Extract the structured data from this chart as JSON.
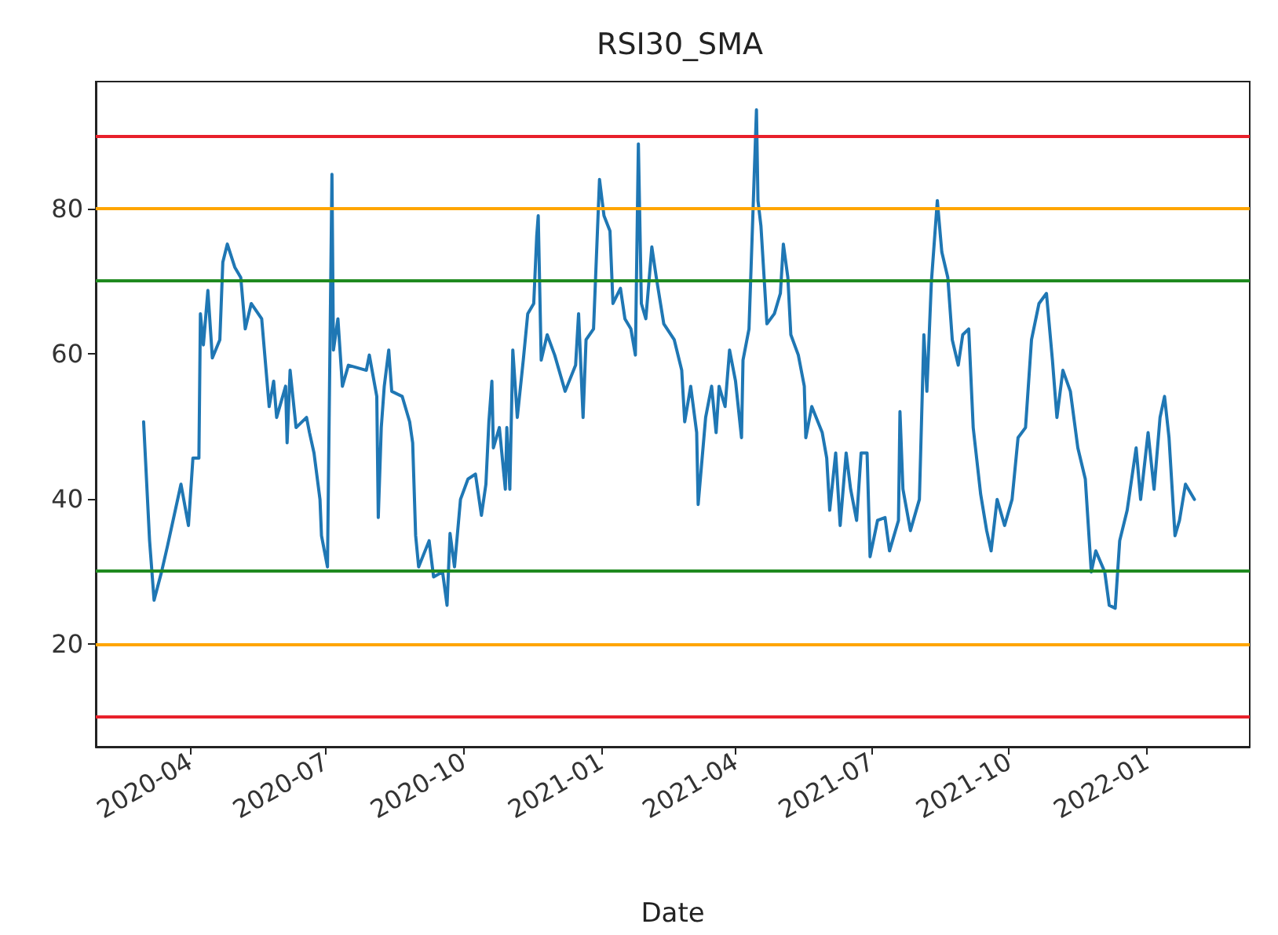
{
  "chart_data": {
    "type": "line",
    "title": "RSI30_SMA",
    "xlabel": "Date",
    "xlim": [
      "2020-01-29",
      "2022-03-11"
    ],
    "xticks": [
      {
        "value": "2020-04-01",
        "label": "2020-04"
      },
      {
        "value": "2020-07-01",
        "label": "2020-07"
      },
      {
        "value": "2020-10-01",
        "label": "2020-10"
      },
      {
        "value": "2021-01-01",
        "label": "2021-01"
      },
      {
        "value": "2021-04-01",
        "label": "2021-04"
      },
      {
        "value": "2021-07-01",
        "label": "2021-07"
      },
      {
        "value": "2021-10-01",
        "label": "2021-10"
      },
      {
        "value": "2022-01-01",
        "label": "2022-01"
      }
    ],
    "ylim": [
      5.8,
      97.5
    ],
    "yticks": [
      20,
      40,
      60,
      80
    ],
    "grid": false,
    "marker": "none",
    "line_style": "solid",
    "ref_lines": [
      {
        "axis": "y",
        "value": 90,
        "color": "#e8202a"
      },
      {
        "axis": "y",
        "value": 80,
        "color": "#ffa500"
      },
      {
        "axis": "y",
        "value": 70,
        "color": "#1f8a1f"
      },
      {
        "axis": "y",
        "value": 30,
        "color": "#1f8a1f"
      },
      {
        "axis": "y",
        "value": 20,
        "color": "#ffa500"
      },
      {
        "axis": "y",
        "value": 10,
        "color": "#e8202a"
      }
    ],
    "series": [
      {
        "color": "#1f77b4",
        "x": [
          "2020-03-01",
          "2020-03-05",
          "2020-03-08",
          "2020-03-13",
          "2020-03-17",
          "2020-03-26",
          "2020-03-31",
          "2020-04-03",
          "2020-04-07",
          "2020-04-08",
          "2020-04-10",
          "2020-04-13",
          "2020-04-16",
          "2020-04-21",
          "2020-04-23",
          "2020-04-26",
          "2020-05-01",
          "2020-05-05",
          "2020-05-08",
          "2020-05-12",
          "2020-05-19",
          "2020-05-24",
          "2020-05-27",
          "2020-05-29",
          "2020-06-04",
          "2020-06-05",
          "2020-06-07",
          "2020-06-11",
          "2020-06-18",
          "2020-06-20",
          "2020-06-23",
          "2020-06-27",
          "2020-06-28",
          "2020-07-02",
          "2020-07-05",
          "2020-07-06",
          "2020-07-09",
          "2020-07-12",
          "2020-07-16",
          "2020-07-28",
          "2020-07-30",
          "2020-08-04",
          "2020-08-05",
          "2020-08-07",
          "2020-08-09",
          "2020-08-12",
          "2020-08-14",
          "2020-08-21",
          "2020-08-26",
          "2020-08-28",
          "2020-08-30",
          "2020-09-01",
          "2020-09-08",
          "2020-09-11",
          "2020-09-17",
          "2020-09-20",
          "2020-09-22",
          "2020-09-25",
          "2020-09-29",
          "2020-10-04",
          "2020-10-09",
          "2020-10-13",
          "2020-10-16",
          "2020-10-18",
          "2020-10-20",
          "2020-10-21",
          "2020-10-25",
          "2020-10-29",
          "2020-10-30",
          "2020-11-01",
          "2020-11-03",
          "2020-11-06",
          "2020-11-10",
          "2020-11-13",
          "2020-11-17",
          "2020-11-19",
          "2020-11-20",
          "2020-11-22",
          "2020-11-26",
          "2020-12-01",
          "2020-12-08",
          "2020-12-15",
          "2020-12-17",
          "2020-12-20",
          "2020-12-22",
          "2020-12-27",
          "2020-12-31",
          "2021-01-03",
          "2021-01-07",
          "2021-01-09",
          "2021-01-14",
          "2021-01-17",
          "2021-01-21",
          "2021-01-24",
          "2021-01-26",
          "2021-01-28",
          "2021-01-31",
          "2021-02-04",
          "2021-02-07",
          "2021-02-12",
          "2021-02-19",
          "2021-02-24",
          "2021-02-26",
          "2021-03-02",
          "2021-03-06",
          "2021-03-07",
          "2021-03-12",
          "2021-03-16",
          "2021-03-19",
          "2021-03-21",
          "2021-03-25",
          "2021-03-28",
          "2021-04-01",
          "2021-04-05",
          "2021-04-06",
          "2021-04-10",
          "2021-04-15",
          "2021-04-16",
          "2021-04-18",
          "2021-04-22",
          "2021-04-27",
          "2021-05-01",
          "2021-05-03",
          "2021-05-06",
          "2021-05-08",
          "2021-05-13",
          "2021-05-17",
          "2021-05-18",
          "2021-05-22",
          "2021-05-29",
          "2021-06-01",
          "2021-06-03",
          "2021-06-07",
          "2021-06-10",
          "2021-06-14",
          "2021-06-17",
          "2021-06-21",
          "2021-06-24",
          "2021-06-28",
          "2021-06-30",
          "2021-07-05",
          "2021-07-10",
          "2021-07-13",
          "2021-07-19",
          "2021-07-20",
          "2021-07-22",
          "2021-07-27",
          "2021-08-02",
          "2021-08-05",
          "2021-08-07",
          "2021-08-10",
          "2021-08-14",
          "2021-08-17",
          "2021-08-21",
          "2021-08-24",
          "2021-08-28",
          "2021-08-31",
          "2021-09-04",
          "2021-09-07",
          "2021-09-12",
          "2021-09-16",
          "2021-09-19",
          "2021-09-23",
          "2021-09-28",
          "2021-10-03",
          "2021-10-07",
          "2021-10-12",
          "2021-10-16",
          "2021-10-21",
          "2021-10-26",
          "2021-10-30",
          "2021-11-02",
          "2021-11-06",
          "2021-11-11",
          "2021-11-16",
          "2021-11-21",
          "2021-11-25",
          "2021-11-28",
          "2021-12-04",
          "2021-12-07",
          "2021-12-11",
          "2021-12-14",
          "2021-12-19",
          "2021-12-25",
          "2021-12-28",
          "2022-01-02",
          "2022-01-06",
          "2022-01-10",
          "2022-01-13",
          "2022-01-16",
          "2022-01-20",
          "2022-01-23",
          "2022-01-27",
          "2022-02-02"
        ],
        "values": [
          50.6,
          34.2,
          26.0,
          29.9,
          33.5,
          42.0,
          36.3,
          45.6,
          45.6,
          65.5,
          61.2,
          68.7,
          59.4,
          61.9,
          72.6,
          75.1,
          71.9,
          70.5,
          63.4,
          66.9,
          64.8,
          52.7,
          56.2,
          51.2,
          55.5,
          47.7,
          57.7,
          49.8,
          51.2,
          49.1,
          46.3,
          39.9,
          34.9,
          30.6,
          84.7,
          60.5,
          64.8,
          55.5,
          58.4,
          57.7,
          59.8,
          54.1,
          37.4,
          49.8,
          55.5,
          60.5,
          54.8,
          54.1,
          50.6,
          47.7,
          34.9,
          30.6,
          34.2,
          29.2,
          29.9,
          25.3,
          35.2,
          30.6,
          39.9,
          42.7,
          43.4,
          37.7,
          42.0,
          50.6,
          56.2,
          47.0,
          49.8,
          41.3,
          49.8,
          41.3,
          60.5,
          51.2,
          59.1,
          65.5,
          66.9,
          76.2,
          79.0,
          59.1,
          62.6,
          59.8,
          54.8,
          58.4,
          65.5,
          51.2,
          61.9,
          63.4,
          84.0,
          79.0,
          76.9,
          66.9,
          69.0,
          64.8,
          63.4,
          59.8,
          88.9,
          66.9,
          64.8,
          74.7,
          70.5,
          64.1,
          61.9,
          57.7,
          50.6,
          55.5,
          49.1,
          39.2,
          51.2,
          55.5,
          49.1,
          55.5,
          52.7,
          60.5,
          56.2,
          48.4,
          59.1,
          63.4,
          93.6,
          81.1,
          77.6,
          64.1,
          65.5,
          68.3,
          75.1,
          70.5,
          62.6,
          59.8,
          55.5,
          48.4,
          52.7,
          49.1,
          45.6,
          38.4,
          46.3,
          36.3,
          46.3,
          41.3,
          37.0,
          46.3,
          46.3,
          32.0,
          37.0,
          37.4,
          32.8,
          37.0,
          52.0,
          41.3,
          35.6,
          39.9,
          62.6,
          54.8,
          69.8,
          81.1,
          74.0,
          70.5,
          61.9,
          58.4,
          62.6,
          63.4,
          49.8,
          40.6,
          35.6,
          32.8,
          39.9,
          36.3,
          39.9,
          48.4,
          49.8,
          61.9,
          66.9,
          68.3,
          59.1,
          51.2,
          57.7,
          54.8,
          47.0,
          42.7,
          29.9,
          32.8,
          29.9,
          25.3,
          24.9,
          34.2,
          38.4,
          47.0,
          39.9,
          49.1,
          41.3,
          51.2,
          54.1,
          48.4,
          34.9,
          37.0,
          42.0,
          39.9
        ]
      }
    ]
  }
}
